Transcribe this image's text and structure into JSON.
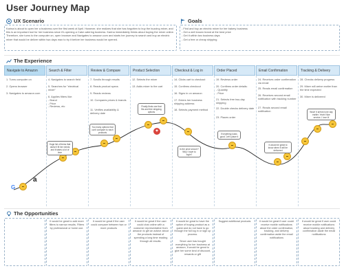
{
  "title": "User Journey Map",
  "scenario": {
    "heading": "UX Scenario",
    "text": "Karina is about to open her a business over the first week of April. However, she realizes that she has forgotten to buy the buzzing mixer, and this is an important tool for her business since it's opening a Cake catering business. Karina immediately thinks about buying the mixer online. Therefore, she turns to the computer on, open browser and Navigates to amazon.com and starts her journey to search and buy an electric mixer that would be deliver within two days max to try it before her business would be opened."
  },
  "goals": {
    "heading": "Goals",
    "items": [
      "- Find and buy an electric mixer for her bakery business",
      "- Get a well known brand at the best price",
      "- Get it within two business days",
      "- Get a free or cheap shipping"
    ]
  },
  "experience": {
    "heading": "The Experience",
    "stages": [
      {
        "label": "Navigate to Amazon",
        "steps": [
          "1. Turns computer on",
          "2. Opens browser",
          "3. Navigates to amazon.com"
        ]
      },
      {
        "label": "Search & Filter",
        "steps": [
          "4. Navigates to search field",
          "5. Searches for \"electrical mixer\"",
          "6. Applies filters like:\n- Brand\n- Price\n- Reviews, etc"
        ]
      },
      {
        "label": "Review & Compare",
        "steps": [
          "7. Scrolls through results",
          "8. Reads product specs",
          "9. Reads reviews",
          "10. Compares prices & brands",
          "11. Verifies availability & delivery date"
        ]
      },
      {
        "label": "Product Selection",
        "steps": [
          "12. Selects the mixer",
          "13. Adds mixer to the cart"
        ]
      },
      {
        "label": "Checkout & Log in",
        "steps": [
          "14. Clicks cart to checkout",
          "15. Confirms checkout",
          "16. Signs in on amazon",
          "17. Enters her business shipping address",
          "18. Selects payment method"
        ]
      },
      {
        "label": "Order Placed",
        "steps": [
          "19. Reviews order",
          "20. Confirms order details:\n- Quantity\n- Price",
          "21. Selects free two-day shipping",
          "22. Double checks delivery date",
          "23. Places order"
        ]
      },
      {
        "label": "Email Confirmation",
        "steps": [
          "24. Receives order confirmation via email",
          "25. Reads email confirmation",
          "26. Receives second email notification with tracking number",
          "27. Reads second email notification"
        ]
      },
      {
        "label": "Tracking & Delivery",
        "steps": [
          "28. Checks delivery progress",
          "29. Mixer will arrive earlier than the time expected",
          "30. Mixer is delivered"
        ]
      }
    ],
    "bubbles": [
      "Huge list of items that doesn't fit her needs and it takes a lot of time",
      "Too many options that can't compare to each products",
      "Finally finds one that fits and free shipping options",
      "Is the price secure? Why I have to login?",
      "Everything looks good. Let's place it",
      "It would be great to know when it will be delivered",
      "Wow! It arrived one day earlier. Yeah! Nice service, I love it!"
    ]
  },
  "opportunities": {
    "heading": "The Opportunities",
    "items": [
      "",
      "It would be great to add more filters to narrow results. Filters by professional or home use.",
      "It would be great if the user could compare between two or more products",
      "It would be great if the user could chat online with a customer representative from amazon to get an advice about the products instead of spending a long time reading through all results.",
      "It would be great to have the option of buying product as a guest and do not have to go through the full log in or sign up process.\n\nSince user has bought everything for her business at amazon, it would be great to give her some kind of discount, rewards or gift",
      "Suggest additional products",
      "It would be great if user could receive mobile notifications about the order confirmation, tracking, and delivery confirmation aside the email notifications",
      "It would be great if user could receive mobile notifications about tracking and delivery confirmation aside the email notifications"
    ]
  }
}
